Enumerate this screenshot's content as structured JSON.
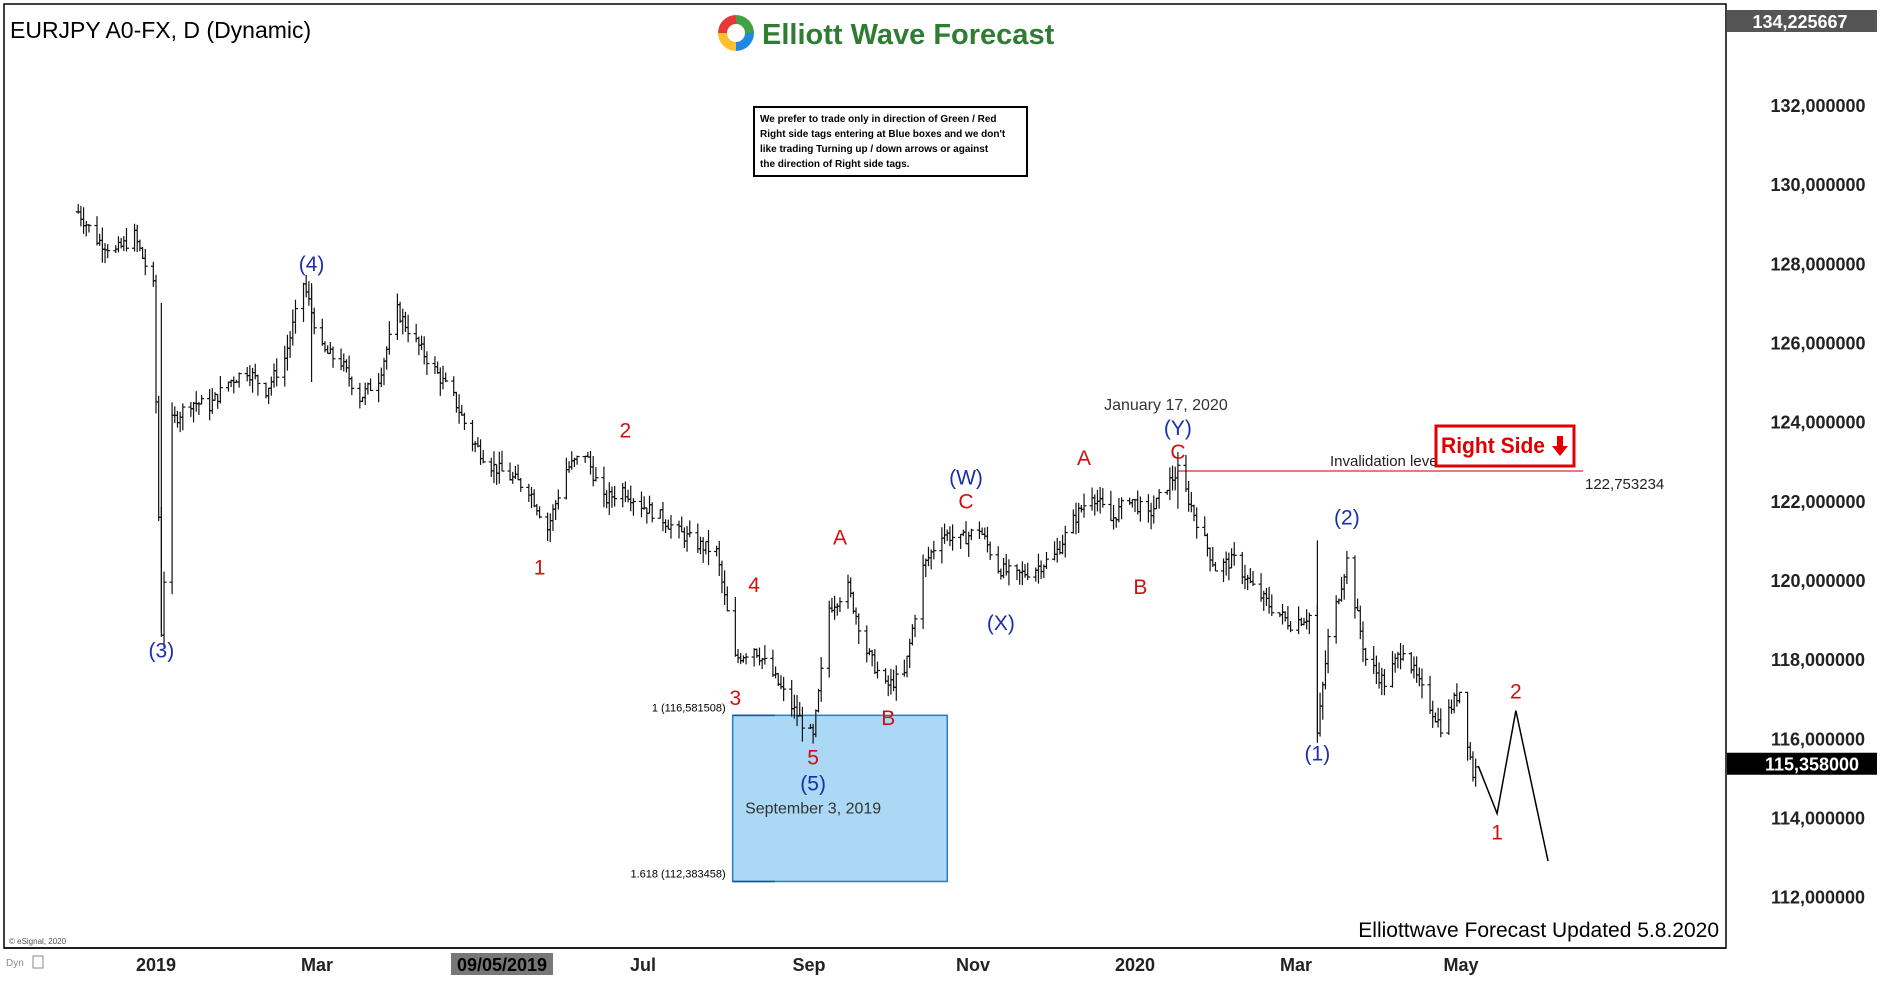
{
  "chart_title": "EURJPY A0-FX, D (Dynamic)",
  "brand": {
    "name": "Elliott Wave Forecast",
    "colors": [
      "#e53935",
      "#43a047",
      "#1e88e5",
      "#fbc02d"
    ]
  },
  "disclaimer": [
    "We prefer to trade only in direction of Green / Red",
    "Right side tags entering at Blue boxes and we don't",
    "like trading Turning up / down arrows or against",
    "the direction of Right side tags."
  ],
  "right_side_tag": {
    "label": "Right Side",
    "arrow": "down-arrow-icon",
    "color": "#e00000"
  },
  "invalidation": {
    "label": "Invalidation level",
    "value_label": "122,753234",
    "value": 122.753234
  },
  "blue_box": {
    "top_label": "1 (116,581508)",
    "top_value": 116.581508,
    "bottom_label": "1.618 (112,383458)",
    "bottom_value": 112.383458,
    "date_label": "September 3, 2019",
    "color": "#aad8f5"
  },
  "price_axis": {
    "ticks": [
      "134,225667",
      "132,000000",
      "130,000000",
      "128,000000",
      "126,000000",
      "124,000000",
      "122,000000",
      "120,000000",
      "118,000000",
      "116,000000",
      "115,358000",
      "114,000000",
      "112,000000"
    ]
  },
  "time_axis": {
    "ticks": [
      "2019",
      "Mar",
      "09/05/2019",
      "Jul",
      "Sep",
      "Nov",
      "2020",
      "Mar",
      "May"
    ]
  },
  "footer": {
    "esignal": "© eSignal, 2020",
    "updated": "Elliottwave Forecast Updated 5.8.2020",
    "dyn": "Dyn"
  },
  "chart_data": {
    "type": "line",
    "symbol": "EURJPY",
    "timeframe": "D",
    "ylim": [
      110.5,
      134.6
    ],
    "last_price": 115.358,
    "high_marker": 134.225667,
    "series": [
      {
        "x": [
          "2018-12-03",
          "2018-12-10",
          "2018-12-17",
          "2018-12-24",
          "2018-12-31",
          "2019-01-03",
          "2019-01-07",
          "2019-01-14",
          "2019-01-21",
          "2019-01-28",
          "2019-02-04",
          "2019-02-11",
          "2019-02-18",
          "2019-02-25",
          "2019-03-04",
          "2019-03-11",
          "2019-03-18",
          "2019-03-25",
          "2019-04-01",
          "2019-04-08",
          "2019-04-15",
          "2019-04-22",
          "2019-04-29",
          "2019-05-06",
          "2019-05-13",
          "2019-05-20",
          "2019-05-27",
          "2019-06-03",
          "2019-06-10",
          "2019-06-17",
          "2019-06-24",
          "2019-07-01",
          "2019-07-08",
          "2019-07-15",
          "2019-07-22",
          "2019-07-29",
          "2019-08-05",
          "2019-08-12",
          "2019-08-19",
          "2019-08-26",
          "2019-09-03",
          "2019-09-09",
          "2019-09-16",
          "2019-09-23",
          "2019-09-30",
          "2019-10-07",
          "2019-10-14",
          "2019-10-21",
          "2019-10-28",
          "2019-11-04",
          "2019-11-11",
          "2019-11-18",
          "2019-11-25",
          "2019-12-02",
          "2019-12-09",
          "2019-12-16",
          "2019-12-23",
          "2019-12-30",
          "2020-01-06",
          "2020-01-13",
          "2020-01-17",
          "2020-01-24",
          "2020-01-31",
          "2020-02-07",
          "2020-02-14",
          "2020-02-21",
          "2020-02-28",
          "2020-03-06",
          "2020-03-09",
          "2020-03-13",
          "2020-03-20",
          "2020-03-27",
          "2020-04-03",
          "2020-04-10",
          "2020-04-17",
          "2020-04-24",
          "2020-05-01",
          "2020-05-06",
          "2020-05-08"
        ],
        "y": [
          129.3,
          128.6,
          128.3,
          128.7,
          127.4,
          118.7,
          124.0,
          124.5,
          124.4,
          125.0,
          125.3,
          124.8,
          125.6,
          127.5,
          125.8,
          125.5,
          124.6,
          125.1,
          126.8,
          126.0,
          125.3,
          124.6,
          123.5,
          122.9,
          122.6,
          122.3,
          121.3,
          122.8,
          123.2,
          122.0,
          122.3,
          121.9,
          121.6,
          121.2,
          120.9,
          120.7,
          118.0,
          118.3,
          117.6,
          116.8,
          116.0,
          119.3,
          119.8,
          118.2,
          117.3,
          117.6,
          120.3,
          121.2,
          121.0,
          121.3,
          120.3,
          120.1,
          120.3,
          120.6,
          121.5,
          122.2,
          121.5,
          122.1,
          121.6,
          122.4,
          122.75,
          121.5,
          120.3,
          120.5,
          119.8,
          119.3,
          118.9,
          119.1,
          116.1,
          118.5,
          120.5,
          118.0,
          117.4,
          118.3,
          117.2,
          116.3,
          117.2,
          115.1,
          115.36
        ]
      }
    ],
    "wave_labels": [
      {
        "text": "(3)",
        "date": "2019-01-03",
        "price": 118.7,
        "color": "blue"
      },
      {
        "text": "(4)",
        "date": "2019-02-28",
        "price": 127.5,
        "color": "blue"
      },
      {
        "text": "1",
        "date": "2019-05-24",
        "price": 120.8,
        "color": "red"
      },
      {
        "text": "2",
        "date": "2019-06-25",
        "price": 123.3,
        "color": "red"
      },
      {
        "text": "3",
        "date": "2019-08-05",
        "price": 117.5,
        "color": "red"
      },
      {
        "text": "4",
        "date": "2019-08-12",
        "price": 119.4,
        "color": "red"
      },
      {
        "text": "5",
        "date": "2019-09-03",
        "price": 116.0,
        "color": "red"
      },
      {
        "text": "(5)",
        "date": "2019-09-03",
        "price": 116.0,
        "color": "blue"
      },
      {
        "text": "A",
        "date": "2019-09-13",
        "price": 120.6,
        "color": "red"
      },
      {
        "text": "B",
        "date": "2019-10-01",
        "price": 117.0,
        "color": "red"
      },
      {
        "text": "C",
        "date": "2019-10-30",
        "price": 121.5,
        "color": "red"
      },
      {
        "text": "(W)",
        "date": "2019-10-30",
        "price": 121.5,
        "color": "blue"
      },
      {
        "text": "(X)",
        "date": "2019-11-12",
        "price": 119.4,
        "color": "blue"
      },
      {
        "text": "A",
        "date": "2019-12-13",
        "price": 122.6,
        "color": "red"
      },
      {
        "text": "B",
        "date": "2020-01-03",
        "price": 120.3,
        "color": "red"
      },
      {
        "text": "C",
        "date": "2020-01-17",
        "price": 122.75,
        "color": "red"
      },
      {
        "text": "(Y)",
        "date": "2020-01-17",
        "price": 122.75,
        "color": "blue"
      },
      {
        "text": "(1)",
        "date": "2020-03-09",
        "price": 116.1,
        "color": "blue"
      },
      {
        "text": "(2)",
        "date": "2020-03-20",
        "price": 121.1,
        "color": "blue"
      },
      {
        "text": "1",
        "date": "2020-05-15",
        "price": 114.1,
        "color": "red"
      },
      {
        "text": "2",
        "date": "2020-05-22",
        "price": 116.7,
        "color": "red"
      }
    ],
    "projection": [
      {
        "date": "2020-05-08",
        "price": 115.3
      },
      {
        "date": "2020-05-15",
        "price": 114.1
      },
      {
        "date": "2020-05-22",
        "price": 116.7
      },
      {
        "date": "2020-06-03",
        "price": 112.9
      }
    ],
    "annotations": [
      {
        "text": "January 17, 2020",
        "date": "2020-01-17"
      },
      {
        "text": "September 3, 2019",
        "date": "2019-09-03"
      }
    ]
  }
}
